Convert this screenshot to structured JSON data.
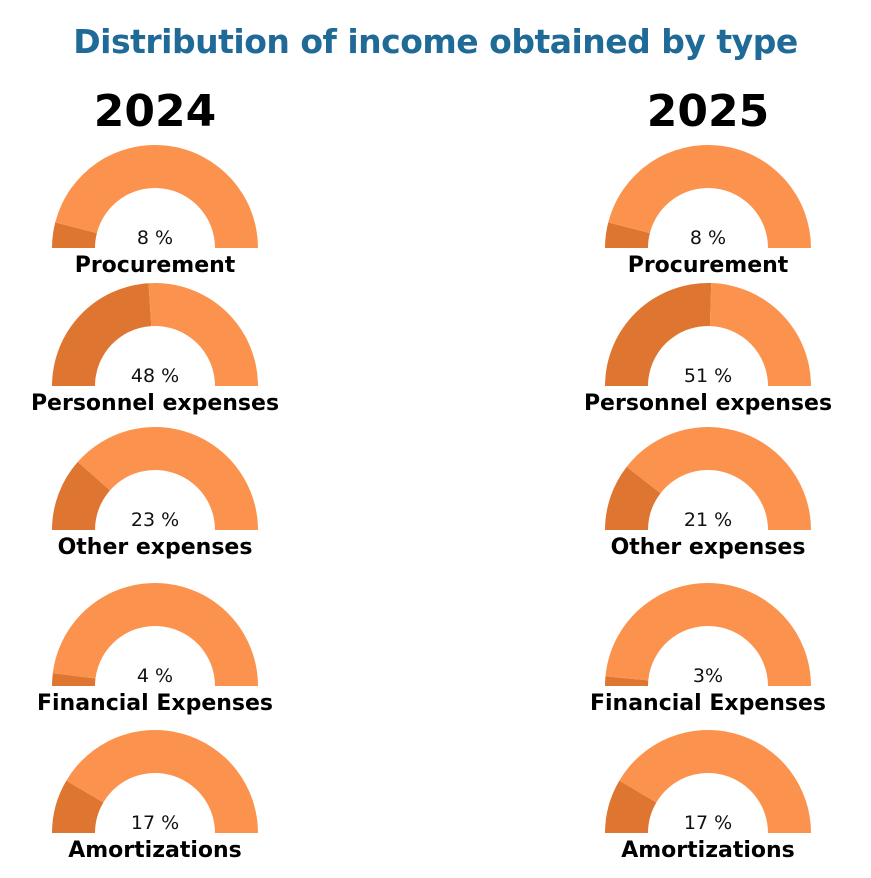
{
  "chart_data": {
    "type": "gauge",
    "title": "Distribution of income obtained by type",
    "colors": {
      "value": "#DE7530",
      "remainder": "#FB934F",
      "title": "#1F6A96"
    },
    "range": [
      0,
      100
    ],
    "panels": [
      {
        "year": "2024",
        "items": [
          {
            "category": "Procurement",
            "value": 8,
            "label": "8 %"
          },
          {
            "category": "Personnel expenses",
            "value": 48,
            "label": "48 %"
          },
          {
            "category": "Other expenses",
            "value": 23,
            "label": "23 %"
          },
          {
            "category": "Financial Expenses",
            "value": 4,
            "label": "4 %"
          },
          {
            "category": "Amortizations",
            "value": 17,
            "label": "17 %"
          }
        ]
      },
      {
        "year": "2025",
        "items": [
          {
            "category": "Procurement",
            "value": 8,
            "label": "8 %"
          },
          {
            "category": "Personnel expenses",
            "value": 51,
            "label": "51 %"
          },
          {
            "category": "Other expenses",
            "value": 21,
            "label": "21 %"
          },
          {
            "category": "Financial Expenses",
            "value": 3,
            "label": "3%"
          },
          {
            "category": "Amortizations",
            "value": 17,
            "label": "17 %"
          }
        ]
      }
    ]
  }
}
